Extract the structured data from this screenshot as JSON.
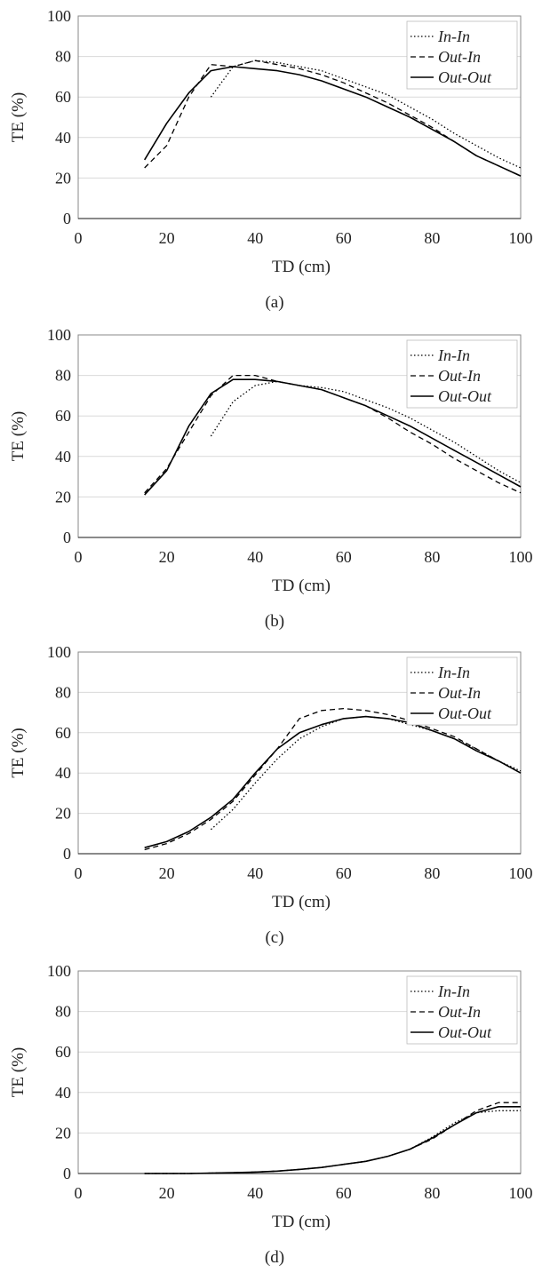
{
  "figure": {
    "xlabel": "TD (cm)",
    "ylabel": "TE (%)",
    "xticks": [
      0,
      20,
      40,
      60,
      80,
      100
    ],
    "yticks": [
      0,
      20,
      40,
      60,
      80,
      100
    ]
  },
  "legend": [
    "In-In",
    "Out-In",
    "Out-Out"
  ],
  "styles": {
    "line_color": "#000000",
    "grid_color": "#d9d9d9",
    "axis_color": "#888888"
  },
  "chart_data": [
    {
      "type": "line",
      "panel_label": "(a)",
      "xlabel": "TD (cm)",
      "ylabel": "TE (%)",
      "xlim": [
        0,
        100
      ],
      "ylim": [
        0,
        100
      ],
      "grid": true,
      "legend_position": "top-right",
      "series": [
        {
          "name": "In-In",
          "x": [
            30,
            35,
            40,
            45,
            50,
            55,
            60,
            65,
            70,
            75,
            80,
            85,
            90,
            95,
            100
          ],
          "y": [
            60,
            75,
            78,
            77,
            75,
            73,
            69,
            65,
            61,
            55,
            49,
            42,
            36,
            30,
            25
          ]
        },
        {
          "name": "Out-In",
          "x": [
            15,
            20,
            25,
            30,
            35,
            40,
            45,
            50,
            55,
            60,
            65,
            70,
            75,
            80,
            85,
            90,
            95,
            100
          ],
          "y": [
            25,
            36,
            60,
            76,
            75,
            78,
            76,
            74,
            71,
            67,
            62,
            57,
            51,
            45,
            38,
            31,
            26,
            21
          ]
        },
        {
          "name": "Out-Out",
          "x": [
            15,
            20,
            25,
            30,
            35,
            40,
            45,
            50,
            55,
            60,
            65,
            70,
            75,
            80,
            85,
            90,
            95,
            100
          ],
          "y": [
            29,
            47,
            62,
            73,
            75,
            74,
            73,
            71,
            68,
            64,
            60,
            55,
            50,
            44,
            38,
            31,
            26,
            21
          ]
        }
      ]
    },
    {
      "type": "line",
      "panel_label": "(b)",
      "xlabel": "TD (cm)",
      "ylabel": "TE (%)",
      "xlim": [
        0,
        100
      ],
      "ylim": [
        0,
        100
      ],
      "grid": true,
      "legend_position": "top-right",
      "series": [
        {
          "name": "In-In",
          "x": [
            30,
            35,
            40,
            45,
            50,
            55,
            60,
            65,
            70,
            75,
            80,
            85,
            90,
            95,
            100
          ],
          "y": [
            50,
            67,
            75,
            77,
            75,
            74,
            72,
            68,
            64,
            59,
            53,
            47,
            40,
            33,
            27
          ]
        },
        {
          "name": "Out-In",
          "x": [
            15,
            20,
            25,
            30,
            35,
            40,
            45,
            50,
            55,
            60,
            65,
            70,
            75,
            80,
            85,
            90,
            95,
            100
          ],
          "y": [
            22,
            34,
            52,
            70,
            80,
            80,
            77,
            75,
            73,
            69,
            65,
            59,
            52,
            46,
            39,
            33,
            27,
            22
          ]
        },
        {
          "name": "Out-Out",
          "x": [
            15,
            20,
            25,
            30,
            35,
            40,
            45,
            50,
            55,
            60,
            65,
            70,
            75,
            80,
            85,
            90,
            95,
            100
          ],
          "y": [
            21,
            33,
            55,
            71,
            78,
            78,
            77,
            75,
            73,
            69,
            65,
            60,
            55,
            49,
            43,
            37,
            31,
            25
          ]
        }
      ]
    },
    {
      "type": "line",
      "panel_label": "(c)",
      "xlabel": "TD (cm)",
      "ylabel": "TE (%)",
      "xlim": [
        0,
        100
      ],
      "ylim": [
        0,
        100
      ],
      "grid": true,
      "legend_position": "top-right",
      "series": [
        {
          "name": "In-In",
          "x": [
            30,
            35,
            40,
            45,
            50,
            55,
            60,
            65,
            70,
            75,
            80,
            85,
            90,
            95,
            100
          ],
          "y": [
            12,
            22,
            35,
            47,
            57,
            63,
            67,
            68,
            67,
            64,
            61,
            57,
            52,
            46,
            41
          ]
        },
        {
          "name": "Out-In",
          "x": [
            15,
            20,
            25,
            30,
            35,
            40,
            45,
            50,
            55,
            60,
            65,
            70,
            75,
            80,
            85,
            90,
            95,
            100
          ],
          "y": [
            2,
            5,
            10,
            17,
            26,
            39,
            52,
            67,
            71,
            72,
            71,
            69,
            66,
            62,
            58,
            52,
            46,
            40
          ]
        },
        {
          "name": "Out-Out",
          "x": [
            15,
            20,
            25,
            30,
            35,
            40,
            45,
            50,
            55,
            60,
            65,
            70,
            75,
            80,
            85,
            90,
            95,
            100
          ],
          "y": [
            3,
            6,
            11,
            18,
            27,
            40,
            52,
            60,
            64,
            67,
            68,
            67,
            65,
            61,
            57,
            51,
            46,
            40
          ]
        }
      ]
    },
    {
      "type": "line",
      "panel_label": "(d)",
      "xlabel": "TD (cm)",
      "ylabel": "TE (%)",
      "xlim": [
        0,
        100
      ],
      "ylim": [
        0,
        100
      ],
      "grid": true,
      "legend_position": "top-right",
      "series": [
        {
          "name": "In-In",
          "x": [
            15,
            20,
            25,
            30,
            35,
            40,
            45,
            50,
            55,
            60,
            65,
            70,
            75,
            80,
            85,
            90,
            95,
            100
          ],
          "y": [
            0,
            0,
            0,
            0.2,
            0.4,
            0.7,
            1.2,
            2,
            3,
            4.5,
            6,
            8.5,
            12,
            18,
            25,
            30,
            31,
            31
          ]
        },
        {
          "name": "Out-In",
          "x": [
            15,
            20,
            25,
            30,
            35,
            40,
            45,
            50,
            55,
            60,
            65,
            70,
            75,
            80,
            85,
            90,
            95,
            100
          ],
          "y": [
            0,
            0,
            0,
            0.2,
            0.4,
            0.7,
            1.2,
            2,
            3,
            4.5,
            6,
            8.5,
            12,
            17,
            24,
            31,
            35,
            35
          ]
        },
        {
          "name": "Out-Out",
          "x": [
            15,
            20,
            25,
            30,
            35,
            40,
            45,
            50,
            55,
            60,
            65,
            70,
            75,
            80,
            85,
            90,
            95,
            100
          ],
          "y": [
            0,
            0,
            0,
            0.2,
            0.4,
            0.7,
            1.2,
            2,
            3,
            4.5,
            6,
            8.5,
            12,
            17.5,
            24,
            30,
            33,
            33
          ]
        }
      ]
    }
  ]
}
